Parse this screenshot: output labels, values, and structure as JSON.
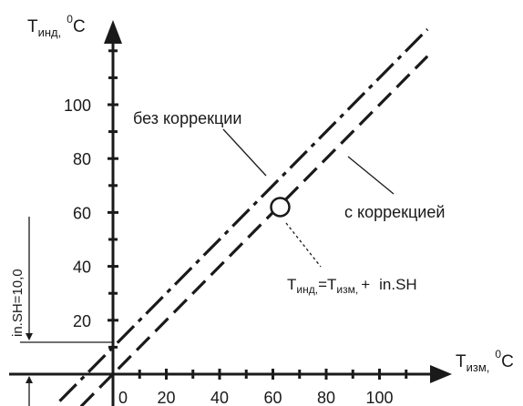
{
  "chart_data": {
    "type": "line",
    "title": "",
    "xlabel": {
      "main": "T",
      "sub": "изм,",
      "unit": "C",
      "degree": "0"
    },
    "ylabel": {
      "main": "T",
      "sub": "инд,",
      "unit": "C",
      "degree": "0"
    },
    "xlim": [
      -20,
      115
    ],
    "ylim": [
      -10,
      130
    ],
    "x_ticks": [
      0,
      20,
      40,
      60,
      80,
      100
    ],
    "y_ticks": [
      20,
      40,
      60,
      80,
      100
    ],
    "x_tick_labels": [
      "0",
      "20",
      "40",
      "60",
      "80",
      "100"
    ],
    "y_tick_labels": [
      "20",
      "40",
      "60",
      "80",
      "100"
    ],
    "series": [
      {
        "name": "без коррекции",
        "x": [
          -12,
          118
        ],
        "y": [
          -12,
          118
        ],
        "style": "dashed"
      },
      {
        "name": "с коррекцией",
        "x": [
          -20,
          118
        ],
        "y": [
          -10,
          128
        ],
        "style": "dashed"
      }
    ],
    "shift": {
      "label": "in.SH=10,0",
      "value": 10
    },
    "marker_point": {
      "x": 60,
      "y": 62,
      "shape": "open-circle"
    },
    "formula": {
      "lhs_main": "T",
      "lhs_sub": "инд,",
      "eq": "=",
      "rhs_main": "T",
      "rhs_sub": "изм,",
      "plus": "+",
      "term": "in.SH"
    },
    "colors": {
      "ink": "#1a1a1a",
      "background": "#ffffff"
    }
  }
}
